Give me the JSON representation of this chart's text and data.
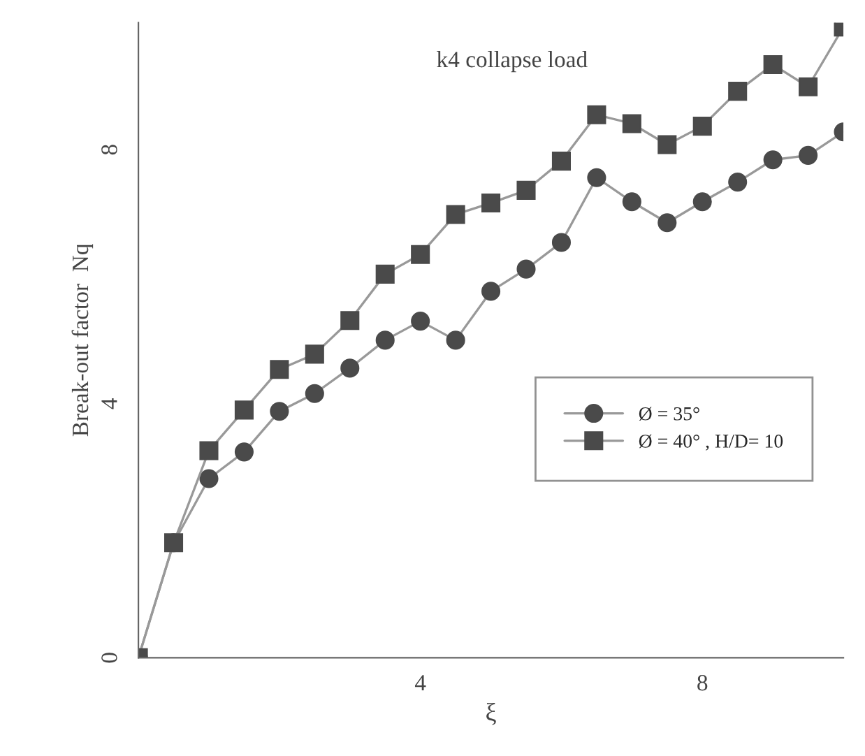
{
  "chart_data": {
    "type": "line",
    "xlabel": "ξ",
    "ylabel": "Break-out factor  Nq",
    "annotations": [
      "k4 collapse load"
    ],
    "x": [
      0,
      0.5,
      1,
      1.5,
      2,
      2.5,
      3,
      3.5,
      4,
      4.5,
      5,
      5.5,
      6,
      6.5,
      7,
      7.5,
      8,
      8.5,
      9,
      9.5,
      10
    ],
    "series": [
      {
        "name": "Ø = 35°",
        "color": "#4a4a4a",
        "marker": "circle",
        "values": [
          0,
          1.81,
          2.82,
          3.24,
          3.88,
          4.16,
          4.56,
          5.0,
          5.3,
          5.0,
          5.77,
          6.12,
          6.54,
          7.56,
          7.18,
          6.85,
          7.18,
          7.49,
          7.84,
          7.91,
          8.28
        ]
      },
      {
        "name": "Ø = 40° , H/D= 10",
        "color": "#4a4a4a",
        "marker": "square",
        "values": [
          0,
          1.81,
          3.26,
          3.9,
          4.54,
          4.78,
          5.31,
          6.04,
          6.35,
          6.98,
          7.16,
          7.36,
          7.82,
          8.55,
          8.41,
          8.08,
          8.37,
          8.92,
          9.34,
          8.99,
          9.93
        ]
      }
    ],
    "xlim": [
      0,
      10
    ],
    "ylim": [
      0,
      10
    ],
    "xticks": [
      4,
      8
    ],
    "yticks": [
      0,
      4,
      8
    ],
    "legend": "right",
    "grid": false
  }
}
